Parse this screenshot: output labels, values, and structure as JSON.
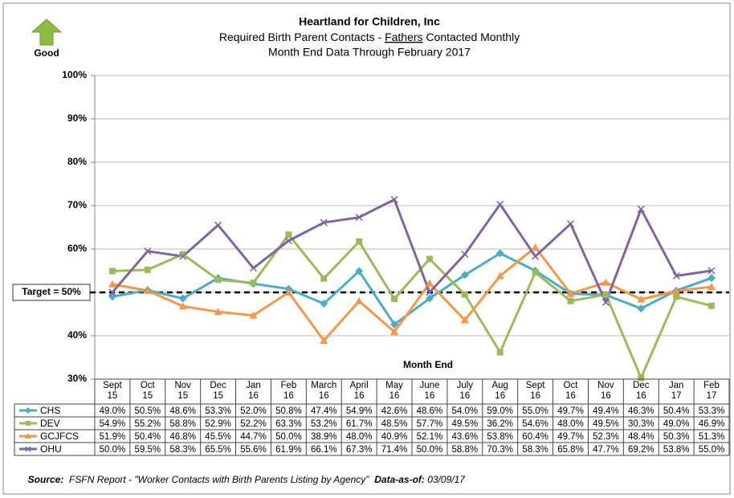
{
  "chart_data": {
    "type": "line",
    "title": "Heartland for Children, Inc",
    "subtitle": [
      "Required Birth Parent Contacts - ",
      "Fathers",
      " Contacted Monthly"
    ],
    "subtitle2": "Month End Data Through February 2017",
    "badge": "Good",
    "xlabel": "Month End",
    "categories": [
      "Sept 15",
      "Oct 15",
      "Nov 15",
      "Dec 15",
      "Jan 16",
      "Feb 16",
      "March 16",
      "April 16",
      "May 16",
      "June 16",
      "July 16",
      "Aug 16",
      "Sept 16",
      "Oct 16",
      "Nov 16",
      "Dec 16",
      "Jan 17",
      "Feb 17"
    ],
    "series": [
      {
        "name": "CHS",
        "color": "#4bacc6",
        "marker": "diamond",
        "values": [
          49.0,
          50.5,
          48.6,
          53.3,
          52.0,
          50.8,
          47.4,
          54.9,
          42.6,
          48.6,
          54.0,
          59.0,
          55.0,
          49.7,
          49.4,
          46.3,
          50.4,
          53.3
        ],
        "value_labels": [
          "49.0%",
          "50.5%",
          "48.6%",
          "53.3%",
          "52.0%",
          "50.8%",
          "47.4%",
          "54.9%",
          "42.6%",
          "48.6%",
          "54.0%",
          "59.0%",
          "55.0%",
          "49.7%",
          "49.4%",
          "46.3%",
          "50.4%",
          "53.3%"
        ]
      },
      {
        "name": "DEV",
        "color": "#9bbb59",
        "marker": "square",
        "values": [
          54.9,
          55.2,
          58.8,
          52.9,
          52.2,
          63.3,
          53.2,
          61.7,
          48.5,
          57.7,
          49.5,
          36.2,
          54.6,
          48.0,
          49.5,
          30.3,
          49.0,
          46.9
        ],
        "value_labels": [
          "54.9%",
          "55.2%",
          "58.8%",
          "52.9%",
          "52.2%",
          "63.3%",
          "53.2%",
          "61.7%",
          "48.5%",
          "57.7%",
          "49.5%",
          "36.2%",
          "54.6%",
          "48.0%",
          "49.5%",
          "30.3%",
          "49.0%",
          "46.9%"
        ]
      },
      {
        "name": "GCJFCS",
        "color": "#f79646",
        "marker": "triangle",
        "values": [
          51.9,
          50.4,
          46.8,
          45.5,
          44.7,
          50.0,
          38.9,
          48.0,
          40.9,
          52.1,
          43.6,
          53.8,
          60.4,
          49.7,
          52.3,
          48.4,
          50.3,
          51.3
        ],
        "value_labels": [
          "51.9%",
          "50.4%",
          "46.8%",
          "45.5%",
          "44.7%",
          "50.0%",
          "38.9%",
          "48.0%",
          "40.9%",
          "52.1%",
          "43.6%",
          "53.8%",
          "60.4%",
          "49.7%",
          "52.3%",
          "48.4%",
          "50.3%",
          "51.3%"
        ]
      },
      {
        "name": "OHU",
        "color": "#8064a2",
        "marker": "x",
        "values": [
          50.0,
          59.5,
          58.3,
          65.5,
          55.6,
          61.9,
          66.1,
          67.3,
          71.4,
          50.0,
          58.8,
          70.3,
          58.3,
          65.8,
          47.7,
          69.2,
          53.8,
          55.0
        ],
        "value_labels": [
          "50.0%",
          "59.5%",
          "58.3%",
          "65.5%",
          "55.6%",
          "61.9%",
          "66.1%",
          "67.3%",
          "71.4%",
          "50.0%",
          "58.8%",
          "70.3%",
          "58.3%",
          "65.8%",
          "47.7%",
          "69.2%",
          "53.8%",
          "55.0%"
        ]
      }
    ],
    "ylim": [
      30,
      100
    ],
    "yticks": [
      {
        "value": 30,
        "label": "30%"
      },
      {
        "value": 40,
        "label": "40%"
      },
      {
        "value": 50,
        "label": "50%"
      },
      {
        "value": 60,
        "label": "60%"
      },
      {
        "value": 70,
        "label": "70%"
      },
      {
        "value": 80,
        "label": "80%"
      },
      {
        "value": 90,
        "label": "90%"
      },
      {
        "value": 100,
        "label": "100%"
      }
    ],
    "grid": true,
    "target": {
      "value": 50,
      "label": "Target = 50%"
    },
    "source": [
      "Source:",
      "  FSFN Report - \"Worker Contacts with Birth Parents Listing by Agency\"",
      "  Data-as-of:",
      " 03/09/17"
    ]
  }
}
